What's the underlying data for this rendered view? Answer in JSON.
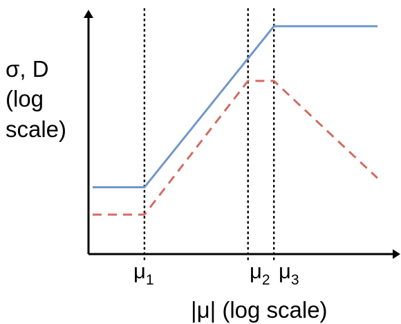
{
  "chart_data": {
    "type": "line",
    "title": "",
    "ylabel_lines": [
      "σ, D",
      "(log",
      "scale)"
    ],
    "xlabel": "|μ| (log scale)",
    "x_markers": [
      {
        "symbol": "μ",
        "subscript": "1"
      },
      {
        "symbol": "μ",
        "subscript": "2"
      },
      {
        "symbol": "μ",
        "subscript": "3"
      }
    ],
    "series": [
      {
        "style": "solid",
        "color": "#6f97c8",
        "points": [
          [
            0,
            2.2
          ],
          [
            2,
            2.2
          ],
          [
            7,
            7.5
          ],
          [
            11,
            7.5
          ]
        ]
      },
      {
        "style": "dashed",
        "color": "#d26b62",
        "points": [
          [
            0,
            1.3
          ],
          [
            2,
            1.3
          ],
          [
            6,
            5.7
          ],
          [
            7,
            5.7
          ],
          [
            11,
            2.5
          ]
        ]
      }
    ],
    "marker_x": [
      2,
      6,
      7
    ],
    "xlim": [
      0,
      11
    ],
    "ylim": [
      0,
      8
    ]
  }
}
